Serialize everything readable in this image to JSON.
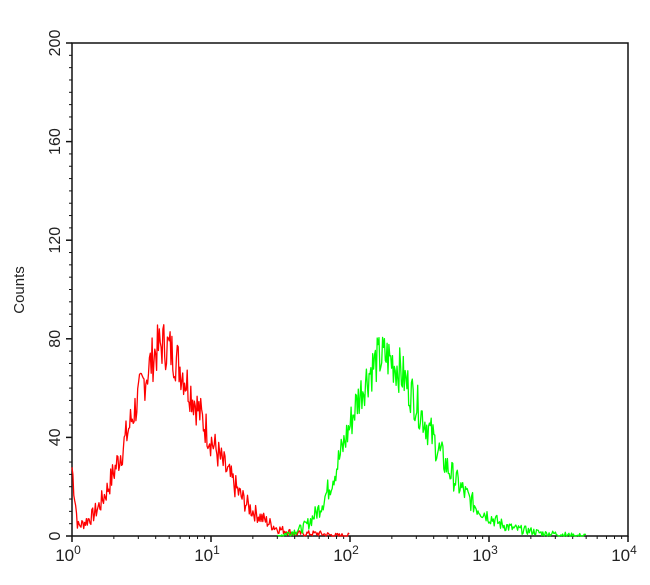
{
  "chart_data": {
    "type": "line",
    "title": "",
    "xlabel": "",
    "ylabel": "Counts",
    "x_scale": "log",
    "xlim": [
      1,
      10000
    ],
    "ylim": [
      0,
      200
    ],
    "grid": false,
    "legend": "none",
    "x_ticks": [
      {
        "base": "10",
        "exp": "0",
        "value": 1
      },
      {
        "base": "10",
        "exp": "1",
        "value": 10
      },
      {
        "base": "10",
        "exp": "2",
        "value": 100
      },
      {
        "base": "10",
        "exp": "3",
        "value": 1000
      },
      {
        "base": "10",
        "exp": "4",
        "value": 10000
      }
    ],
    "y_ticks": [
      {
        "label": "0",
        "value": 0
      },
      {
        "label": "40",
        "value": 40
      },
      {
        "label": "80",
        "value": 80
      },
      {
        "label": "120",
        "value": 120
      },
      {
        "label": "160",
        "value": 160
      },
      {
        "label": "200",
        "value": 200
      }
    ],
    "series": [
      {
        "color": "#ff0000",
        "x": [
          1.0,
          1.1,
          1.2,
          1.4,
          1.6,
          1.8,
          2.0,
          2.3,
          2.6,
          3.0,
          3.5,
          4.0,
          4.5,
          5.0,
          5.6,
          6.3,
          7.1,
          8.0,
          9.0,
          10,
          12,
          14,
          16,
          18,
          20,
          25,
          30,
          35,
          40,
          50,
          60,
          80,
          100
        ],
        "y": [
          28,
          4,
          5,
          8,
          13,
          19,
          26,
          35,
          45,
          56,
          67,
          75,
          78,
          76,
          72,
          66,
          59,
          52,
          45,
          39,
          30,
          23,
          17,
          13,
          10,
          6,
          3,
          2,
          1,
          1,
          1,
          0,
          0
        ]
      },
      {
        "color": "#00ff00",
        "x": [
          30,
          35,
          40,
          45,
          50,
          60,
          70,
          80,
          90,
          100,
          110,
          125,
          140,
          160,
          180,
          200,
          230,
          260,
          300,
          350,
          400,
          450,
          500,
          600,
          700,
          800,
          1000,
          1200,
          1500,
          2000,
          2500,
          3000,
          4000,
          5000
        ],
        "y": [
          0,
          1,
          2,
          3,
          5,
          11,
          19,
          28,
          37,
          45,
          53,
          61,
          67,
          72,
          73,
          71,
          67,
          61,
          54,
          46,
          39,
          33,
          28,
          21,
          16,
          12,
          8,
          5,
          3,
          2,
          1,
          1,
          0,
          0
        ]
      }
    ]
  }
}
